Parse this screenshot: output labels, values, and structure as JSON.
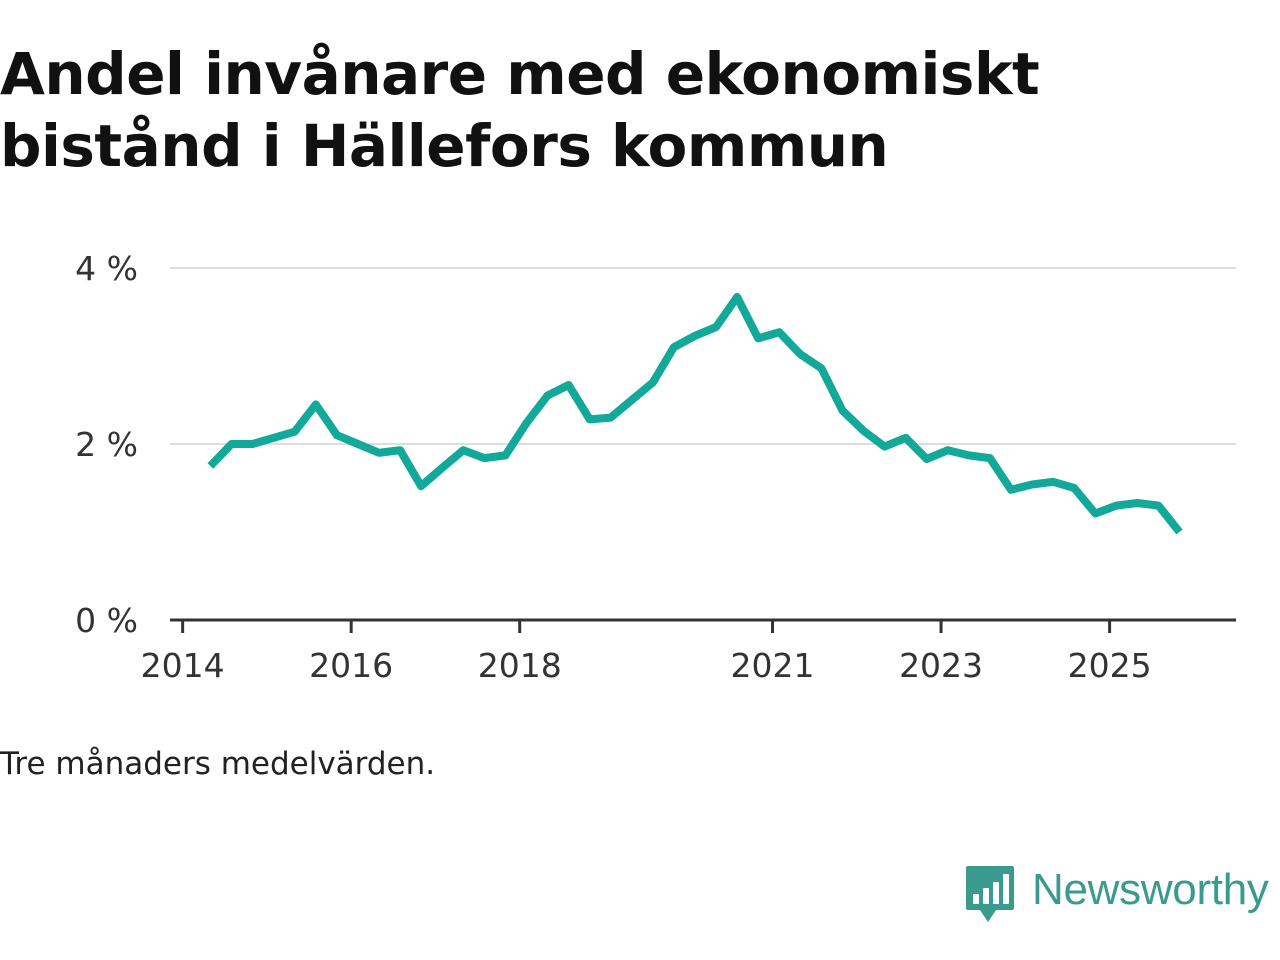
{
  "title": "Andel invånare med ekonomiskt bistånd i Hällefors kommun",
  "note": "Tre månaders medelvärden.",
  "brand": {
    "name": "Newsworthy",
    "color": "#3a9a8e",
    "icon": "newsworthy-logo-icon"
  },
  "chart_data": {
    "type": "line",
    "title": "Andel invånare med ekonomiskt bistånd i Hällefors kommun",
    "xlabel": "",
    "ylabel": "",
    "xlim": [
      2013.85,
      2026.5
    ],
    "ylim": [
      0,
      4
    ],
    "grid": true,
    "line_color": "#12a89a",
    "y_ticks": [
      {
        "value": 0,
        "label": "0 %"
      },
      {
        "value": 2,
        "label": "2 %"
      },
      {
        "value": 4,
        "label": "4 %"
      }
    ],
    "x_ticks": [
      {
        "value": 2014,
        "label": "2014"
      },
      {
        "value": 2016,
        "label": "2016"
      },
      {
        "value": 2018,
        "label": "2018"
      },
      {
        "value": 2021,
        "label": "2021"
      },
      {
        "value": 2023,
        "label": "2023"
      },
      {
        "value": 2025,
        "label": "2025"
      }
    ],
    "series": [
      {
        "name": "Andel invånare med ekonomiskt bistånd",
        "x": [
          2014.33,
          2014.58,
          2014.83,
          2015.08,
          2015.33,
          2015.58,
          2015.83,
          2016.08,
          2016.33,
          2016.58,
          2016.83,
          2017.08,
          2017.33,
          2017.58,
          2017.83,
          2018.08,
          2018.33,
          2018.58,
          2018.83,
          2019.08,
          2019.33,
          2019.58,
          2019.83,
          2020.08,
          2020.33,
          2020.58,
          2020.83,
          2021.08,
          2021.33,
          2021.58,
          2021.83,
          2022.08,
          2022.33,
          2022.58,
          2022.83,
          2023.08,
          2023.33,
          2023.58,
          2023.83,
          2024.08,
          2024.33,
          2024.58,
          2024.83,
          2025.08,
          2025.33,
          2025.58,
          2025.83
        ],
        "values": [
          1.75,
          2.0,
          2.0,
          2.07,
          2.14,
          2.45,
          2.1,
          2.0,
          1.9,
          1.93,
          1.52,
          1.73,
          1.93,
          1.84,
          1.87,
          2.24,
          2.55,
          2.67,
          2.28,
          2.3,
          2.5,
          2.7,
          3.1,
          3.23,
          3.33,
          3.67,
          3.2,
          3.27,
          3.02,
          2.86,
          2.38,
          2.15,
          1.97,
          2.07,
          1.83,
          1.93,
          1.87,
          1.84,
          1.48,
          1.54,
          1.57,
          1.5,
          1.21,
          1.3,
          1.33,
          1.3,
          1.0
        ]
      }
    ]
  }
}
